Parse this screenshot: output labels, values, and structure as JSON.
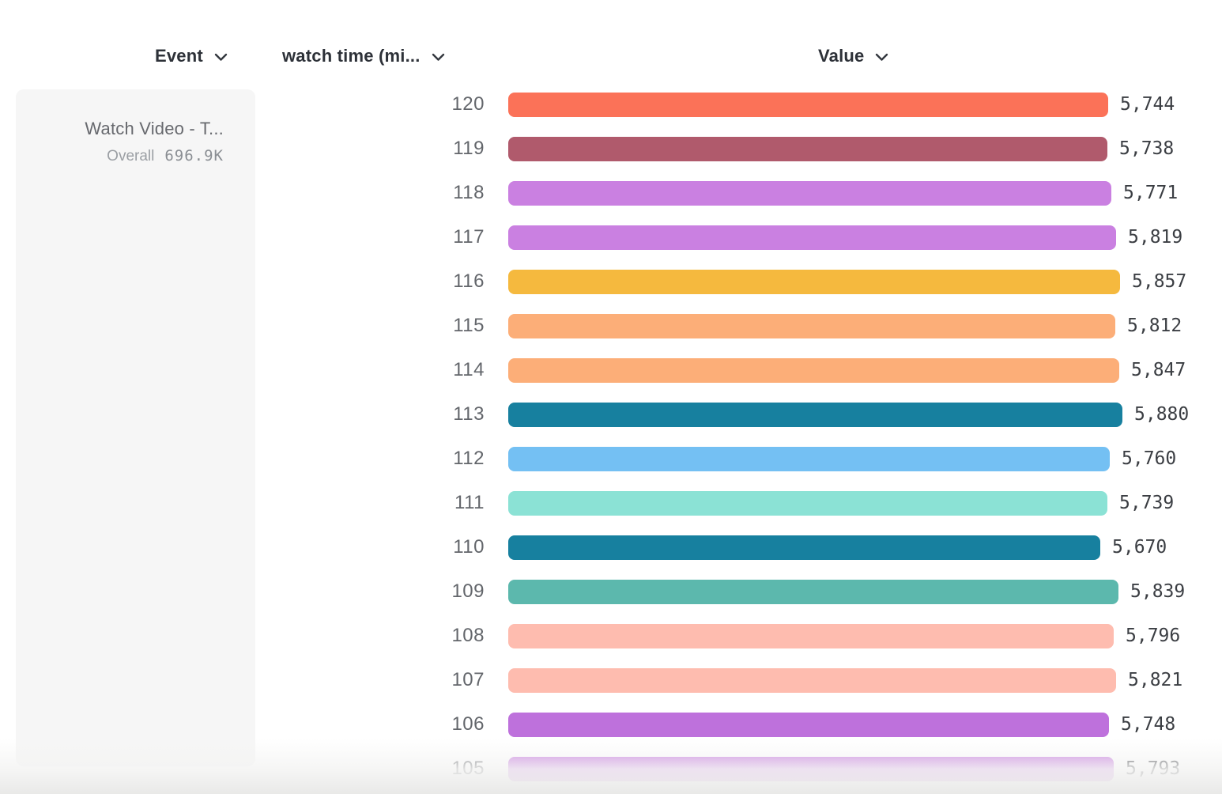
{
  "header": {
    "columns": [
      {
        "id": "event",
        "label": "Event"
      },
      {
        "id": "watch_time",
        "label": "watch time (mi..."
      },
      {
        "id": "value",
        "label": "Value"
      }
    ]
  },
  "event_card": {
    "title": "Watch Video - T...",
    "metric_label": "Overall",
    "metric_value": "696.9K"
  },
  "chart_data": {
    "type": "bar",
    "orientation": "horizontal",
    "title": "",
    "xlabel": "Value",
    "ylabel": "watch time (mi...",
    "grid": false,
    "legend": false,
    "categories": [
      "120",
      "119",
      "118",
      "117",
      "116",
      "115",
      "114",
      "113",
      "112",
      "111",
      "110",
      "109",
      "108",
      "107",
      "106",
      "105"
    ],
    "values": [
      5744,
      5738,
      5771,
      5819,
      5857,
      5812,
      5847,
      5880,
      5760,
      5739,
      5670,
      5839,
      5796,
      5821,
      5748,
      5793
    ],
    "value_labels": [
      "5,744",
      "5,738",
      "5,771",
      "5,819",
      "5,857",
      "5,812",
      "5,847",
      "5,880",
      "5,760",
      "5,739",
      "5,670",
      "5,839",
      "5,796",
      "5,821",
      "5,748",
      "5,793"
    ],
    "colors": [
      "#FB7258",
      "#B05A6C",
      "#CA80E1",
      "#CA80E1",
      "#F5B93E",
      "#FCAE78",
      "#FCAE78",
      "#17809F",
      "#74C0F3",
      "#8BE2D5",
      "#17809F",
      "#5CB8AD",
      "#FEBCAF",
      "#FEBCAF",
      "#BE71DC",
      "#C77CDF"
    ]
  },
  "colors": {
    "header_text": "#2d3138",
    "row_label": "#63666b",
    "value_text": "#3b3e43",
    "card_bg": "#f6f6f6",
    "card_title": "#67696e",
    "card_sub": "#9b9fa4",
    "background": "#ffffff"
  }
}
